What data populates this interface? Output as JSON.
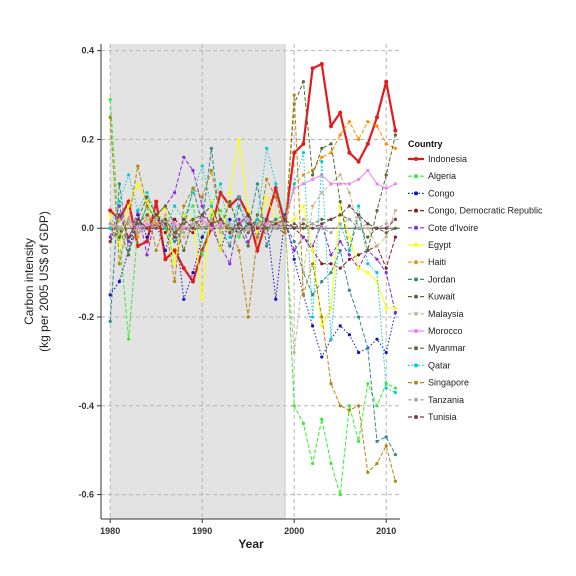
{
  "chart_data": {
    "type": "line",
    "title": "",
    "xlabel": "Year",
    "ylabel": [
      "Carbon intensity",
      "(kg per 2005 US$ of GDP)"
    ],
    "xlim": [
      1979,
      2011.5
    ],
    "ylim": [
      -0.655,
      0.415
    ],
    "x_ticks": [
      1980,
      1990,
      2000,
      2010
    ],
    "y_ticks": [
      -0.6,
      -0.4,
      -0.2,
      0.0,
      0.2,
      0.4
    ],
    "y_tick_labels": [
      "-0.6",
      "-0.4",
      "-0.2",
      "0.0",
      "0.2",
      "0.4"
    ],
    "shaded_region": [
      1980,
      1999
    ],
    "zero_line": 0,
    "grid": true,
    "legend": {
      "title": "Country",
      "position": "right"
    },
    "x": [
      1980,
      1981,
      1982,
      1983,
      1984,
      1985,
      1986,
      1987,
      1988,
      1989,
      1990,
      1991,
      1992,
      1993,
      1994,
      1995,
      1996,
      1997,
      1998,
      1999,
      2000,
      2001,
      2002,
      2003,
      2004,
      2005,
      2006,
      2007,
      2008,
      2009,
      2010,
      2011
    ],
    "series": [
      {
        "name": "Indonesia",
        "color": "#e41a1c",
        "style": "solid",
        "width": 2.2,
        "values": [
          0.04,
          0.02,
          0.06,
          -0.04,
          -0.03,
          0.06,
          -0.07,
          -0.05,
          -0.09,
          -0.12,
          -0.05,
          0.0,
          0.08,
          0.05,
          0.07,
          0.03,
          -0.05,
          0.02,
          0.09,
          0.01,
          0.17,
          0.19,
          0.36,
          0.37,
          0.23,
          0.26,
          0.17,
          0.15,
          0.19,
          0.25,
          0.33,
          0.22
        ]
      },
      {
        "name": "Algeria",
        "color": "#33ee33",
        "style": "dashed",
        "width": 1,
        "values": [
          0.29,
          -0.02,
          -0.25,
          0.0,
          0.05,
          0.03,
          0.02,
          -0.08,
          0.03,
          0.05,
          -0.06,
          0.03,
          0.04,
          0.0,
          -0.02,
          0.02,
          0.01,
          0.0,
          0.02,
          0.03,
          -0.4,
          -0.44,
          -0.53,
          -0.43,
          -0.53,
          -0.6,
          -0.4,
          -0.48,
          -0.35,
          -0.4,
          -0.35,
          -0.36
        ]
      },
      {
        "name": "Congo",
        "color": "#1111cc",
        "style": "dotted",
        "width": 1,
        "values": [
          -0.15,
          -0.12,
          -0.05,
          0.03,
          -0.02,
          0.01,
          -0.05,
          0.02,
          -0.16,
          -0.1,
          -0.02,
          0.02,
          -0.05,
          0.02,
          0.01,
          0.03,
          -0.02,
          0.02,
          -0.16,
          0.03,
          -0.07,
          -0.15,
          -0.22,
          -0.29,
          -0.25,
          -0.22,
          -0.24,
          -0.28,
          -0.27,
          -0.25,
          -0.28,
          -0.19
        ]
      },
      {
        "name": "Congo, Democratic Republic",
        "color": "#8b1a1a",
        "style": "dashed",
        "width": 1,
        "values": [
          0.01,
          0.0,
          -0.03,
          0.02,
          0.0,
          0.01,
          -0.01,
          0.02,
          0.0,
          -0.01,
          0.02,
          0.0,
          0.01,
          0.0,
          -0.01,
          0.01,
          0.0,
          0.01,
          0.0,
          0.01,
          0.0,
          -0.02,
          -0.05,
          -0.08,
          -0.08,
          -0.09,
          -0.07,
          -0.06,
          -0.05,
          -0.04,
          -0.09,
          -0.02
        ]
      },
      {
        "name": "Cote d'Ivoire",
        "color": "#8a2be2",
        "style": "dashed",
        "width": 1,
        "values": [
          -0.02,
          0.05,
          -0.03,
          0.04,
          -0.06,
          0.03,
          0.05,
          0.08,
          0.16,
          0.13,
          0.05,
          0.0,
          -0.04,
          -0.08,
          0.02,
          -0.03,
          0.01,
          0.02,
          0.0,
          0.01,
          -0.05,
          -0.02,
          -0.04,
          0.01,
          -0.06,
          -0.03,
          -0.06,
          -0.09,
          -0.05,
          -0.07,
          -0.1,
          -0.19
        ]
      },
      {
        "name": "Egypt",
        "color": "#ffff00",
        "style": "solid",
        "width": 1,
        "values": [
          0.03,
          -0.04,
          0.05,
          0.1,
          0.06,
          0.02,
          0.05,
          -0.08,
          0.03,
          0.02,
          -0.16,
          0.06,
          -0.05,
          0.08,
          0.2,
          0.04,
          -0.01,
          0.07,
          0.02,
          0.01,
          0.02,
          0.05,
          -0.05,
          -0.22,
          -0.18,
          0.05,
          -0.02,
          -0.09,
          -0.1,
          -0.12,
          -0.18,
          -0.18
        ]
      },
      {
        "name": "Haiti",
        "color": "#ff8c00",
        "style": "dashed",
        "width": 1,
        "values": [
          0.0,
          0.02,
          0.01,
          -0.02,
          0.03,
          0.01,
          0.02,
          -0.01,
          0.0,
          0.01,
          0.0,
          0.02,
          0.01,
          0.0,
          0.01,
          0.02,
          0.0,
          0.01,
          0.02,
          0.0,
          0.1,
          0.12,
          0.13,
          0.16,
          0.17,
          0.21,
          0.24,
          0.2,
          0.24,
          0.23,
          0.19,
          0.18
        ]
      },
      {
        "name": "Jordan",
        "color": "#2e8b87",
        "style": "dashed",
        "width": 1,
        "values": [
          -0.21,
          0.1,
          -0.05,
          0.0,
          0.05,
          0.02,
          0.0,
          -0.03,
          0.0,
          0.09,
          0.01,
          0.18,
          0.0,
          -0.04,
          0.05,
          0.0,
          0.1,
          -0.04,
          0.02,
          0.01,
          -0.03,
          -0.1,
          -0.15,
          -0.12,
          -0.1,
          -0.05,
          -0.14,
          -0.2,
          -0.27,
          -0.48,
          -0.47,
          -0.51
        ]
      },
      {
        "name": "Kuwait",
        "color": "#556b2f",
        "style": "dashed",
        "width": 1,
        "values": [
          -0.03,
          0.0,
          -0.06,
          0.02,
          0.07,
          0.03,
          0.05,
          0.01,
          -0.05,
          0.02,
          0.03,
          0.05,
          0.0,
          0.06,
          0.0,
          -0.04,
          0.03,
          0.02,
          0.0,
          -0.01,
          0.28,
          0.33,
          0.12,
          0.18,
          0.19,
          0.06,
          -0.05,
          0.03,
          -0.05,
          0.04,
          0.12,
          0.21
        ]
      },
      {
        "name": "Malaysia",
        "color": "#d2b48c",
        "style": "dashed",
        "width": 1,
        "values": [
          0.0,
          0.02,
          0.01,
          -0.01,
          0.02,
          0.0,
          0.03,
          0.01,
          -0.02,
          0.0,
          0.01,
          0.02,
          -0.01,
          0.0,
          0.01,
          0.02,
          0.0,
          -0.01,
          0.01,
          0.0,
          -0.28,
          -0.1,
          0.05,
          0.08,
          0.1,
          0.12,
          0.08,
          0.0,
          0.0,
          -0.04,
          -0.02,
          0.04
        ]
      },
      {
        "name": "Morocco",
        "color": "#ee82ee",
        "style": "solid",
        "width": 1,
        "values": [
          0.01,
          0.0,
          0.02,
          0.0,
          0.01,
          0.0,
          0.02,
          0.01,
          0.0,
          0.01,
          0.02,
          0.0,
          0.01,
          0.0,
          0.01,
          0.02,
          0.0,
          0.01,
          0.0,
          0.02,
          0.09,
          0.1,
          0.11,
          0.12,
          0.1,
          0.1,
          0.1,
          0.11,
          0.13,
          0.1,
          0.09,
          0.1
        ]
      },
      {
        "name": "Myanmar",
        "color": "#5c6b3a",
        "style": "dashed",
        "width": 1,
        "values": [
          0.0,
          -0.02,
          0.02,
          0.01,
          0.03,
          0.0,
          0.02,
          -0.01,
          0.01,
          0.02,
          0.0,
          0.01,
          0.02,
          0.0,
          0.01,
          -0.01,
          0.02,
          0.0,
          0.01,
          0.0,
          0.01,
          0.0,
          0.01,
          0.02,
          0.02,
          0.03,
          0.02,
          0.0,
          -0.02,
          0.0,
          -0.01,
          0.0
        ]
      },
      {
        "name": "Qatar",
        "color": "#00ced1",
        "style": "dotted",
        "width": 1,
        "values": [
          0.0,
          0.06,
          0.12,
          0.04,
          0.08,
          0.03,
          0.0,
          0.05,
          0.02,
          0.08,
          0.14,
          0.05,
          0.1,
          -0.02,
          0.07,
          0.0,
          0.02,
          0.18,
          0.1,
          0.02,
          0.1,
          0.17,
          -0.2,
          0.15,
          -0.25,
          0.01,
          -0.05,
          0.05,
          -0.08,
          -0.1,
          -0.36,
          -0.37
        ]
      },
      {
        "name": "Singapore",
        "color": "#b8860b",
        "style": "dashed",
        "width": 1,
        "values": [
          0.25,
          -0.08,
          0.02,
          0.14,
          0.05,
          -0.05,
          0.01,
          -0.12,
          0.05,
          0.09,
          0.07,
          0.13,
          0.02,
          0.0,
          -0.05,
          -0.2,
          -0.02,
          0.11,
          0.07,
          -0.01,
          0.3,
          -0.15,
          -0.08,
          -0.2,
          -0.35,
          -0.4,
          -0.41,
          -0.4,
          -0.55,
          -0.53,
          -0.49,
          -0.57
        ]
      },
      {
        "name": "Tanzania",
        "color": "#a9a9a9",
        "style": "dashed",
        "width": 1,
        "values": [
          0.01,
          0.0,
          0.02,
          -0.01,
          0.0,
          0.02,
          0.01,
          0.0,
          -0.01,
          0.01,
          0.0,
          0.02,
          0.0,
          0.01,
          -0.01,
          0.0,
          0.01,
          0.02,
          0.0,
          0.01,
          0.0,
          0.02,
          0.01,
          0.0,
          -0.01,
          0.01,
          0.02,
          0.0,
          0.01,
          0.0,
          0.01,
          0.02
        ]
      },
      {
        "name": "Tunisia",
        "color": "#7b3f3f",
        "style": "dashed",
        "width": 1,
        "values": [
          -0.03,
          0.03,
          -0.02,
          0.02,
          0.0,
          0.03,
          0.01,
          -0.02,
          0.02,
          0.0,
          0.03,
          0.01,
          0.02,
          -0.01,
          0.01,
          0.03,
          0.0,
          0.02,
          0.01,
          0.02,
          0.0,
          0.01,
          0.0,
          0.01,
          0.02,
          0.03,
          0.05,
          0.03,
          0.01,
          0.0,
          0.0,
          0.02
        ]
      }
    ]
  }
}
